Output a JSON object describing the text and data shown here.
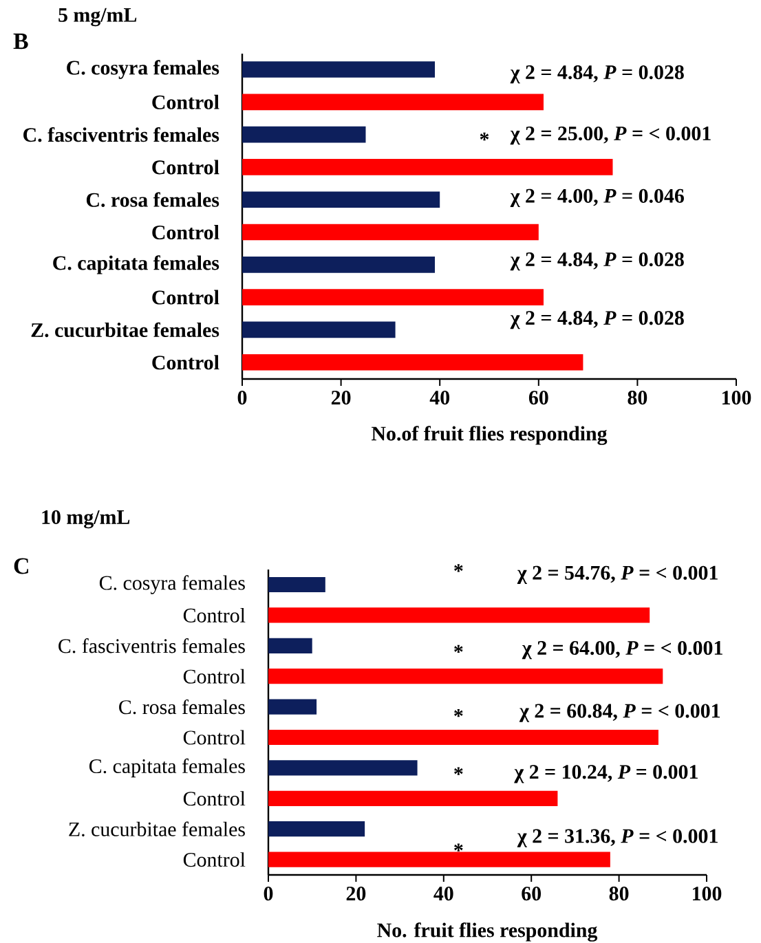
{
  "chart_data": [
    {
      "type": "bar",
      "orientation": "horizontal",
      "title": "5 mg/mL",
      "subtitle": "B",
      "categories": [
        "C. cosyra females",
        "Control",
        "C. fasciventris females",
        "Control",
        "C. rosa females",
        "Control",
        "C. capitata  females",
        "Control",
        "Z. cucurbitae  females",
        "Control"
      ],
      "values": [
        39,
        61,
        25,
        75,
        40,
        60,
        39,
        61,
        31,
        69
      ],
      "colors": [
        "#0d1f5c",
        "#ff0000",
        "#0d1f5c",
        "#ff0000",
        "#0d1f5c",
        "#ff0000",
        "#0d1f5c",
        "#ff0000",
        "#0d1f5c",
        "#ff0000"
      ],
      "xlim": [
        0,
        100
      ],
      "xticks": [
        0,
        20,
        40,
        60,
        80,
        100
      ],
      "xlabel": "No.of  fruit flies responding",
      "annotations": [
        "χ 2 = 4.84, *P* = 0.028",
        "*",
        "χ 2 = 25.00, *P* = < 0.001",
        "χ 2 = 4.00, *P* = 0.046",
        "χ 2 = 4.84, *P* = 0.028",
        "χ 2 = 4.84, *P* = 0.028"
      ]
    },
    {
      "type": "bar",
      "orientation": "horizontal",
      "title": "10 mg/mL",
      "subtitle": "C",
      "categories": [
        "C. cosyra females",
        "Control",
        "C. fasciventris females",
        "Control",
        "C. rosa females",
        "Control",
        "C. capitata  females",
        "Control",
        "Z. cucurbitae  females",
        "Control"
      ],
      "values": [
        13,
        87,
        10,
        90,
        11,
        89,
        34,
        66,
        22,
        78
      ],
      "colors": [
        "#0d1f5c",
        "#ff0000",
        "#0d1f5c",
        "#ff0000",
        "#0d1f5c",
        "#ff0000",
        "#0d1f5c",
        "#ff0000",
        "#0d1f5c",
        "#ff0000"
      ],
      "xlim": [
        0,
        100
      ],
      "xticks": [
        0,
        20,
        40,
        60,
        80,
        100
      ],
      "xlabel": "No. fruit flies responding",
      "annotations": [
        "*",
        "χ 2 = 54.76, *P* = < 0.001",
        "*",
        "χ 2 = 64.00, *P* = < 0.001",
        "*",
        "χ 2 = 60.84, *P* = < 0.001",
        "*",
        "χ 2 = 10.24, *P* = 0.001",
        "*",
        "χ 2 = 31.36, *P* = < 0.001"
      ]
    }
  ]
}
